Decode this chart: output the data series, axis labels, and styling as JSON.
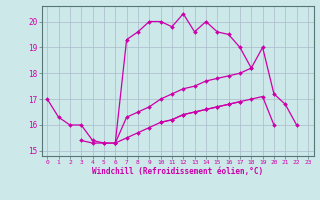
{
  "xlabel": "Windchill (Refroidissement éolien,°C)",
  "bg_color": "#cce8e8",
  "grid_color": "#aabbcc",
  "line_color": "#cc00aa",
  "x_hours": [
    0,
    1,
    2,
    3,
    4,
    5,
    6,
    7,
    8,
    9,
    10,
    11,
    12,
    13,
    14,
    15,
    16,
    17,
    18,
    19,
    20,
    21,
    22,
    23
  ],
  "xlim": [
    -0.5,
    23.5
  ],
  "ylim": [
    14.8,
    20.6
  ],
  "yticks": [
    15,
    16,
    17,
    18,
    19,
    20
  ],
  "series1": [
    17.0,
    16.3,
    16.0,
    16.0,
    15.4,
    15.3,
    15.3,
    19.3,
    19.6,
    20.0,
    20.0,
    19.8,
    20.3,
    19.6,
    20.0,
    19.6,
    19.5,
    19.0,
    18.2,
    19.0,
    17.2,
    16.8,
    16.0,
    null
  ],
  "series2": [
    null,
    null,
    null,
    15.4,
    15.3,
    15.3,
    15.3,
    16.3,
    16.5,
    16.7,
    17.0,
    17.2,
    17.4,
    17.5,
    17.7,
    17.8,
    17.9,
    18.0,
    18.2,
    null,
    null,
    null,
    null,
    null
  ],
  "series3": [
    null,
    null,
    null,
    null,
    null,
    null,
    15.3,
    15.5,
    15.7,
    15.9,
    16.1,
    16.2,
    16.4,
    16.5,
    16.6,
    16.7,
    16.8,
    16.9,
    null,
    null,
    null,
    null,
    null,
    null
  ],
  "series4": [
    null,
    null,
    null,
    null,
    null,
    null,
    null,
    null,
    null,
    null,
    16.1,
    16.2,
    16.4,
    16.5,
    16.6,
    16.7,
    16.8,
    16.9,
    17.0,
    17.1,
    16.0,
    null,
    null,
    null
  ]
}
